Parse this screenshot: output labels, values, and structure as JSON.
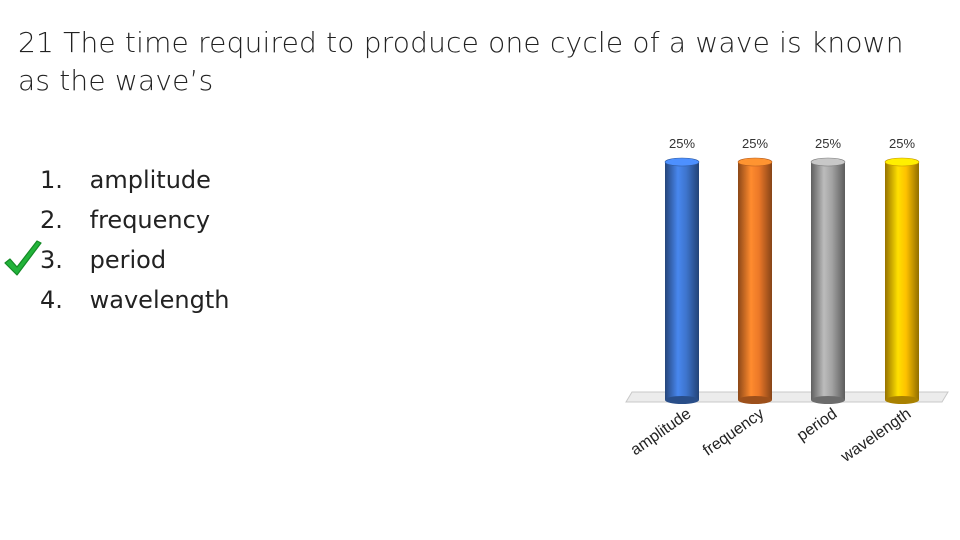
{
  "question": {
    "number": "21",
    "text": "The time required to produce one cycle of a wave is known as the wave’s"
  },
  "answers": [
    {
      "num": "1.",
      "label": "amplitude"
    },
    {
      "num": "2.",
      "label": "frequency"
    },
    {
      "num": "3.",
      "label": "period",
      "correct": true
    },
    {
      "num": "4.",
      "label": "wavelength"
    }
  ],
  "check_icon": "checkmark-icon",
  "chart_data": {
    "type": "bar",
    "categories": [
      "amplitude",
      "frequency",
      "period",
      "wavelength"
    ],
    "values": [
      25,
      25,
      25,
      25
    ],
    "data_labels": [
      "25%",
      "25%",
      "25%",
      "25%"
    ],
    "colors": [
      "#3b6fc4",
      "#e07226",
      "#9a9a9a",
      "#f2b800"
    ],
    "ylim": [
      0,
      25
    ],
    "grid": false,
    "legend": "none"
  }
}
